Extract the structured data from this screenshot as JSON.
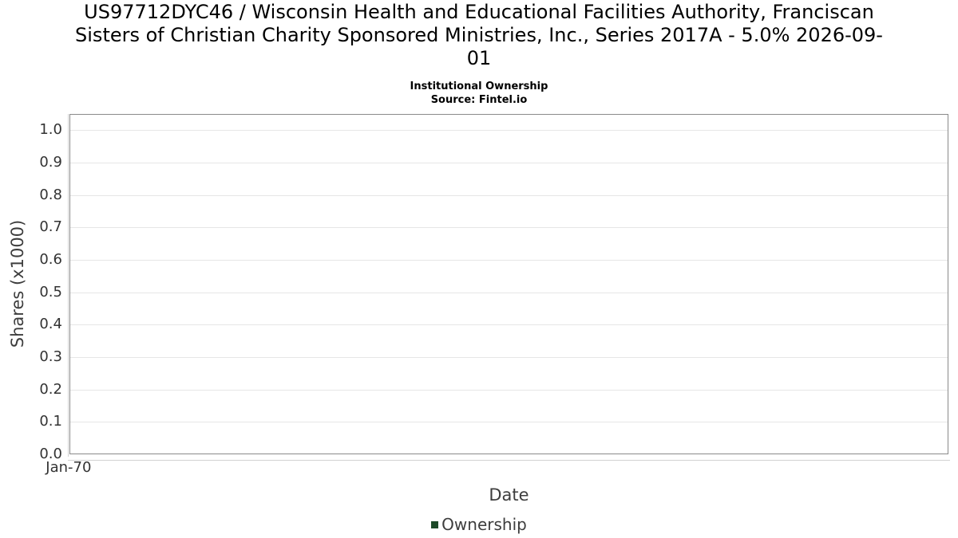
{
  "header": {
    "title": "US97712DYC46 / Wisconsin Health and Educational Facilities Authority, Franciscan Sisters of Christian Charity Sponsored Ministries, Inc., Series 2017A - 5.0% 2026-09-01",
    "title_lines": [
      "US97712DYC46 / Wisconsin Health and Educational Facilities Authority, Franciscan",
      "Sisters of Christian Charity Sponsored Ministries, Inc., Series 2017A - 5.0% 2026-09-",
      "01"
    ],
    "subtitle": "Institutional Ownership",
    "source": "Source: Fintel.io"
  },
  "chart_data": {
    "type": "line",
    "title": "Institutional Ownership",
    "xlabel": "Date",
    "ylabel": "Shares (x1000)",
    "series": [
      {
        "name": "Ownership",
        "color": "#1d4a28",
        "x": [],
        "values": []
      }
    ],
    "xticks": [
      "Jan-70"
    ],
    "yticks": [
      "0.0",
      "0.1",
      "0.2",
      "0.3",
      "0.4",
      "0.5",
      "0.6",
      "0.7",
      "0.8",
      "0.9",
      "1.0"
    ],
    "ylim": [
      0,
      1.05
    ],
    "grid": "horizontal",
    "legend_position": "bottom-center"
  },
  "colors": {
    "background": "#ffffff",
    "plot_border": "#8a8a8a",
    "gridline": "#e6e6e6",
    "axis_line": "#d2d2d2",
    "tick_text": "#333333",
    "label_text": "#3d3d3d",
    "title_text": "#000000",
    "ownership_series": "#1d4a28"
  }
}
